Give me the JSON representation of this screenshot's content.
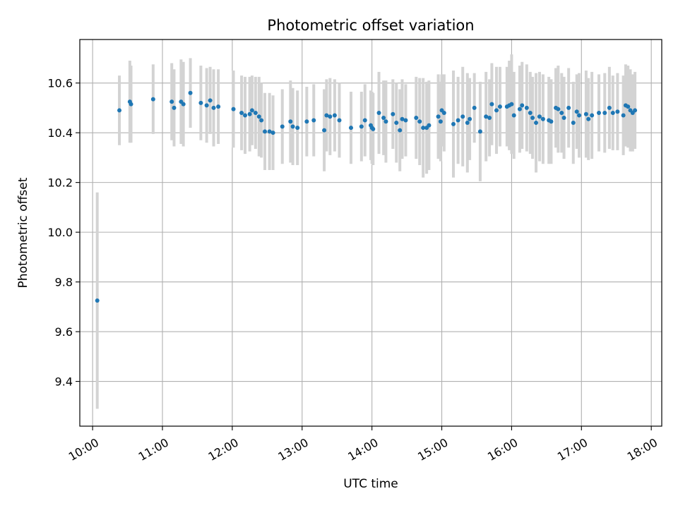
{
  "chart_data": {
    "type": "scatter",
    "title": "Photometric offset variation",
    "xlabel": "UTC time",
    "ylabel": "Photometric offset",
    "x_ticks": [
      "10:00",
      "11:00",
      "12:00",
      "13:00",
      "14:00",
      "15:00",
      "16:00",
      "17:00",
      "18:00"
    ],
    "y_ticks": [
      "9.4",
      "9.6",
      "9.8",
      "10.0",
      "10.2",
      "10.4",
      "10.6"
    ],
    "xlim": [
      "09:49",
      "18:09"
    ],
    "ylim": [
      9.22,
      10.775
    ],
    "grid": true,
    "colors": {
      "point": "#1f77b4",
      "errorbar": "#d3d3d3",
      "grid": "#b0b0b0"
    },
    "series": [
      {
        "x": [
          "10:04",
          "10:23",
          "10:32",
          "10:33",
          "10:52",
          "11:08",
          "11:10",
          "11:16",
          "11:18",
          "11:24",
          "11:33",
          "11:38",
          "11:41",
          "11:44",
          "11:48",
          "12:01",
          "12:08",
          "12:11",
          "12:15",
          "12:17",
          "12:20",
          "12:23",
          "12:25",
          "12:28",
          "12:32",
          "12:35",
          "12:43",
          "12:50",
          "12:52",
          "12:56",
          "13:04",
          "13:10",
          "13:19",
          "13:21",
          "13:24",
          "13:28",
          "13:32",
          "13:42",
          "13:51",
          "13:54",
          "13:59",
          "14:00",
          "14:01",
          "14:06",
          "14:10",
          "14:12",
          "14:18",
          "14:21",
          "14:24",
          "14:26",
          "14:29",
          "14:38",
          "14:41",
          "14:44",
          "14:47",
          "14:49",
          "14:57",
          "14:59",
          "15:00",
          "15:02",
          "15:10",
          "15:14",
          "15:18",
          "15:22",
          "15:24",
          "15:28",
          "15:33",
          "15:38",
          "15:41",
          "15:43",
          "15:47",
          "15:50",
          "15:56",
          "15:58",
          "16:00",
          "16:02",
          "16:07",
          "16:09",
          "16:13",
          "16:16",
          "16:18",
          "16:21",
          "16:24",
          "16:27",
          "16:32",
          "16:34",
          "16:38",
          "16:40",
          "16:43",
          "16:45",
          "16:49",
          "16:53",
          "16:56",
          "16:58",
          "17:04",
          "17:06",
          "17:09",
          "17:15",
          "17:20",
          "17:24",
          "17:27",
          "17:31",
          "17:36",
          "17:38",
          "17:40",
          "17:42",
          "17:44",
          "17:46"
        ],
        "y": [
          9.725,
          10.49,
          10.525,
          10.515,
          10.535,
          10.525,
          10.5,
          10.525,
          10.515,
          10.56,
          10.52,
          10.51,
          10.53,
          10.5,
          10.505,
          10.495,
          10.48,
          10.47,
          10.475,
          10.49,
          10.48,
          10.465,
          10.45,
          10.405,
          10.405,
          10.4,
          10.425,
          10.445,
          10.425,
          10.42,
          10.445,
          10.45,
          10.41,
          10.47,
          10.465,
          10.47,
          10.45,
          10.42,
          10.425,
          10.45,
          10.43,
          10.42,
          10.415,
          10.48,
          10.46,
          10.445,
          10.475,
          10.44,
          10.41,
          10.455,
          10.45,
          10.46,
          10.445,
          10.42,
          10.42,
          10.43,
          10.465,
          10.445,
          10.49,
          10.48,
          10.435,
          10.45,
          10.465,
          10.44,
          10.455,
          10.5,
          10.405,
          10.465,
          10.46,
          10.515,
          10.49,
          10.505,
          10.505,
          10.51,
          10.515,
          10.47,
          10.495,
          10.51,
          10.5,
          10.48,
          10.46,
          10.44,
          10.465,
          10.455,
          10.45,
          10.445,
          10.5,
          10.495,
          10.48,
          10.46,
          10.5,
          10.44,
          10.485,
          10.47,
          10.475,
          10.455,
          10.47,
          10.48,
          10.48,
          10.5,
          10.48,
          10.485,
          10.47,
          10.51,
          10.505,
          10.49,
          10.48,
          10.49
        ],
        "yerr": [
          0.435,
          0.14,
          0.165,
          0.155,
          0.14,
          0.155,
          0.155,
          0.17,
          0.17,
          0.14,
          0.15,
          0.15,
          0.135,
          0.155,
          0.15,
          0.155,
          0.15,
          0.155,
          0.15,
          0.14,
          0.145,
          0.16,
          0.15,
          0.155,
          0.155,
          0.15,
          0.15,
          0.165,
          0.155,
          0.15,
          0.14,
          0.145,
          0.165,
          0.145,
          0.155,
          0.145,
          0.15,
          0.145,
          0.14,
          0.145,
          0.14,
          0.145,
          0.145,
          0.165,
          0.15,
          0.165,
          0.14,
          0.16,
          0.165,
          0.16,
          0.145,
          0.165,
          0.175,
          0.2,
          0.185,
          0.18,
          0.17,
          0.16,
          0.145,
          0.155,
          0.215,
          0.175,
          0.2,
          0.2,
          0.165,
          0.14,
          0.2,
          0.18,
          0.155,
          0.165,
          0.175,
          0.16,
          0.16,
          0.18,
          0.2,
          0.175,
          0.175,
          0.175,
          0.175,
          0.165,
          0.165,
          0.2,
          0.18,
          0.18,
          0.175,
          0.17,
          0.16,
          0.175,
          0.16,
          0.165,
          0.16,
          0.165,
          0.15,
          0.17,
          0.175,
          0.165,
          0.175,
          0.155,
          0.16,
          0.165,
          0.15,
          0.155,
          0.16,
          0.165,
          0.165,
          0.165,
          0.155,
          0.155
        ]
      }
    ]
  }
}
